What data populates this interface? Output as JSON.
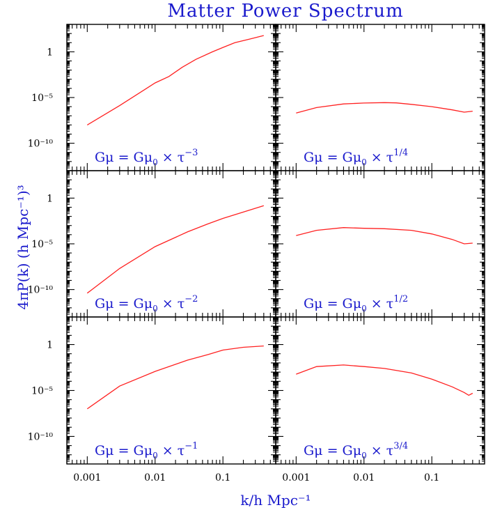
{
  "figure": {
    "title": "Matter Power Spectrum",
    "xlabel": "k/h Mpc⁻¹",
    "ylabel": "4πP(k) (h Mpc⁻¹)³",
    "title_color": "#1a1acc",
    "curve_color": "#ff2020",
    "axis_color": "#000000"
  },
  "chart_data": [
    {
      "type": "line",
      "panel": "top-left",
      "label": {
        "base": "Gμ  =  Gμ",
        "sub": "0",
        "mid": "  ×  τ",
        "sup": "−3"
      },
      "xscale": "log",
      "yscale": "log",
      "xlim": [
        0.0005,
        0.6
      ],
      "ylim": [
        1e-13,
        1000.0
      ],
      "xticklabels": [],
      "yticks": [
        1,
        1e-05,
        1e-10
      ],
      "yticklabels": [
        "1",
        "10⁻⁵",
        "10⁻¹⁰"
      ],
      "series": [
        {
          "x": [
            0.001,
            0.003,
            0.01,
            0.016,
            0.025,
            0.04,
            0.07,
            0.1,
            0.15,
            0.25,
            0.4
          ],
          "y": [
            1e-08,
            1.3e-06,
            0.0004,
            0.002,
            0.02,
            0.15,
            1,
            3,
            10,
            25,
            60
          ]
        }
      ]
    },
    {
      "type": "line",
      "panel": "top-right",
      "label": {
        "base": "Gμ  =  Gμ",
        "sub": "0",
        "mid": "  ×  τ",
        "sup": "1/4"
      },
      "xscale": "log",
      "yscale": "log",
      "xlim": [
        0.0005,
        0.6
      ],
      "ylim": [
        1e-13,
        1000.0
      ],
      "xticklabels": [],
      "yticks": [
        1,
        1e-05,
        1e-10
      ],
      "yticklabels": [],
      "series": [
        {
          "x": [
            0.001,
            0.002,
            0.005,
            0.01,
            0.02,
            0.03,
            0.05,
            0.1,
            0.2,
            0.3,
            0.4
          ],
          "y": [
            2e-07,
            8e-07,
            2e-06,
            2.5e-06,
            2.8e-06,
            2.6e-06,
            1.8e-06,
            1e-06,
            4.5e-07,
            2.5e-07,
            3.2e-07
          ]
        }
      ]
    },
    {
      "type": "line",
      "panel": "middle-left",
      "label": {
        "base": "Gμ  =  Gμ",
        "sub": "0",
        "mid": "  ×  τ",
        "sup": "−2"
      },
      "xscale": "log",
      "yscale": "log",
      "xlim": [
        0.0005,
        0.6
      ],
      "ylim": [
        1e-13,
        1000.0
      ],
      "xticklabels": [],
      "yticks": [
        1,
        1e-05,
        1e-10
      ],
      "yticklabels": [
        "1",
        "10⁻⁵",
        "10⁻¹⁰"
      ],
      "series": [
        {
          "x": [
            0.001,
            0.003,
            0.01,
            0.03,
            0.06,
            0.1,
            0.2,
            0.4
          ],
          "y": [
            4e-11,
            2e-08,
            5e-06,
            0.0002,
            0.0015,
            0.006,
            0.03,
            0.15
          ]
        }
      ]
    },
    {
      "type": "line",
      "panel": "middle-right",
      "label": {
        "base": "Gμ  =  Gμ",
        "sub": "0",
        "mid": "  ×  τ",
        "sup": "1/2"
      },
      "xscale": "log",
      "yscale": "log",
      "xlim": [
        0.0005,
        0.6
      ],
      "ylim": [
        1e-13,
        1000.0
      ],
      "xticklabels": [],
      "yticks": [
        1,
        1e-05,
        1e-10
      ],
      "yticklabels": [],
      "series": [
        {
          "x": [
            0.001,
            0.002,
            0.005,
            0.01,
            0.02,
            0.05,
            0.1,
            0.2,
            0.3,
            0.4
          ],
          "y": [
            8e-05,
            0.0003,
            0.0006,
            0.0005,
            0.00045,
            0.0003,
            0.00012,
            3e-05,
            1e-05,
            1.2e-05
          ]
        }
      ]
    },
    {
      "type": "line",
      "panel": "bottom-left",
      "label": {
        "base": "Gμ  =  Gμ",
        "sub": "0",
        "mid": "  ×  τ",
        "sup": "−1"
      },
      "xscale": "log",
      "yscale": "log",
      "xlim": [
        0.0005,
        0.6
      ],
      "ylim": [
        1e-13,
        1000.0
      ],
      "xticks": [
        0.001,
        0.01,
        0.1
      ],
      "xticklabels": [
        "0.001",
        "0.01",
        "0.1"
      ],
      "yticks": [
        1,
        1e-05,
        1e-10
      ],
      "yticklabels": [
        "1",
        "10⁻⁵",
        "10⁻¹⁰"
      ],
      "series": [
        {
          "x": [
            0.001,
            0.003,
            0.01,
            0.03,
            0.06,
            0.1,
            0.2,
            0.4
          ],
          "y": [
            1e-07,
            3e-05,
            0.0012,
            0.02,
            0.08,
            0.25,
            0.5,
            0.7
          ]
        }
      ]
    },
    {
      "type": "line",
      "panel": "bottom-right",
      "label": {
        "base": "Gμ  =  Gμ",
        "sub": "0",
        "mid": "  ×  τ",
        "sup": "3/4"
      },
      "xscale": "log",
      "yscale": "log",
      "xlim": [
        0.0005,
        0.6
      ],
      "ylim": [
        1e-13,
        1000.0
      ],
      "xticks": [
        0.001,
        0.01,
        0.1
      ],
      "xticklabels": [
        "0.001",
        "0.01",
        "0.1"
      ],
      "yticks": [
        1,
        1e-05,
        1e-10
      ],
      "yticklabels": [],
      "series": [
        {
          "x": [
            0.001,
            0.002,
            0.005,
            0.01,
            0.02,
            0.05,
            0.1,
            0.2,
            0.3,
            0.35,
            0.4
          ],
          "y": [
            0.0006,
            0.004,
            0.006,
            0.004,
            0.0025,
            0.0008,
            0.00017,
            2.5e-05,
            6e-06,
            3e-06,
            5e-06
          ]
        }
      ]
    }
  ]
}
